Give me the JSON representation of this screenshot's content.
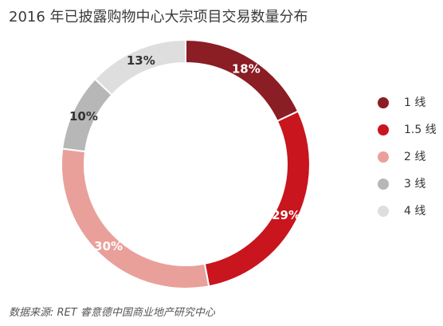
{
  "title": "2016 年已披露购物中心大宗项目交易数量分布",
  "source": "数据来源: RET 睿意德中国商业地产研究中心",
  "chart_data": {
    "type": "pie",
    "donut": true,
    "title": "2016 年已披露购物中心大宗项目交易数量分布",
    "legend_position": "right",
    "categories": [
      "1 线",
      "1.5 线",
      "2 线",
      "3 线",
      "4 线"
    ],
    "values": [
      18,
      29,
      30,
      10,
      13
    ],
    "labels": [
      "18%",
      "29%",
      "30%",
      "10%",
      "13%"
    ],
    "colors": [
      "#8b1d24",
      "#c8151e",
      "#e9a09a",
      "#b7b7b7",
      "#dedede"
    ],
    "label_colors": [
      "#ffffff",
      "#ffffff",
      "#ffffff",
      "#333333",
      "#333333"
    ]
  }
}
